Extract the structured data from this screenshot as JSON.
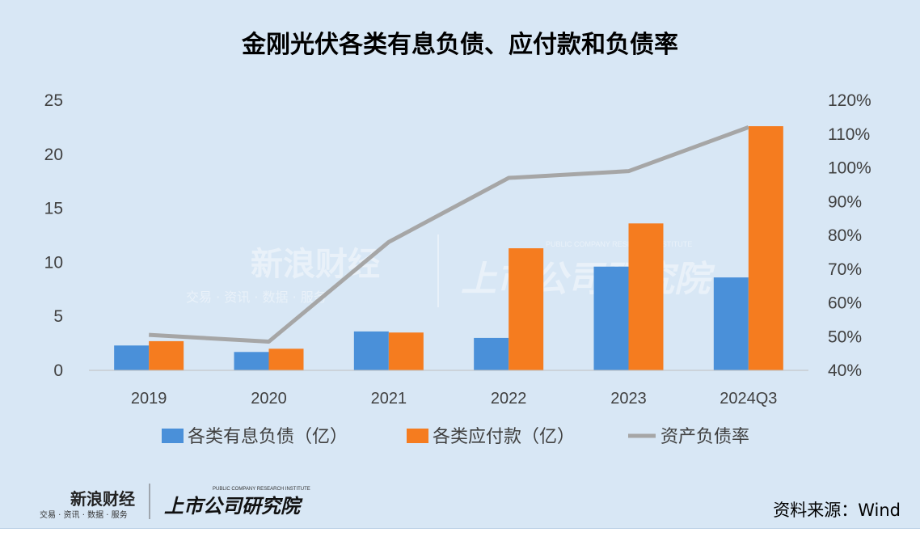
{
  "title": "金刚光伏各类有息负债、应付款和负债率",
  "source": "资料来源：Wind",
  "watermark": {
    "brand": "新浪财经",
    "brand_sub": "交易 · 资讯 · 数据 · 服务",
    "institute": "上市公司研究院",
    "institute_sub": "PUBLIC COMPANY RESEARCH INSTITUTE"
  },
  "colors": {
    "bar_blue": "#4a90d9",
    "bar_orange": "#f57c1f",
    "line_gray": "#a6a6a6",
    "background": "#d8e7f5"
  },
  "chart_data": {
    "type": "bar",
    "categories": [
      "2019",
      "2020",
      "2021",
      "2022",
      "2023",
      "2024Q3"
    ],
    "series": [
      {
        "name": "各类有息负债（亿）",
        "type": "bar",
        "axis": "left",
        "values": [
          2.3,
          1.7,
          3.6,
          3.0,
          9.6,
          8.6
        ]
      },
      {
        "name": "各类应付款（亿）",
        "type": "bar",
        "axis": "left",
        "values": [
          2.7,
          2.0,
          3.5,
          11.3,
          13.6,
          22.6
        ]
      },
      {
        "name": "资产负债率",
        "type": "line",
        "axis": "right",
        "values": [
          50.5,
          48.5,
          78.0,
          97.0,
          99.0,
          112.0
        ]
      }
    ],
    "y_left": {
      "min": 0,
      "max": 25,
      "ticks": [
        "0",
        "5",
        "10",
        "15",
        "20",
        "25"
      ]
    },
    "y_right": {
      "min": 40,
      "max": 120,
      "ticks": [
        "40%",
        "50%",
        "60%",
        "70%",
        "80%",
        "90%",
        "100%",
        "110%",
        "120%"
      ]
    },
    "grid": false,
    "legend_position": "bottom"
  }
}
